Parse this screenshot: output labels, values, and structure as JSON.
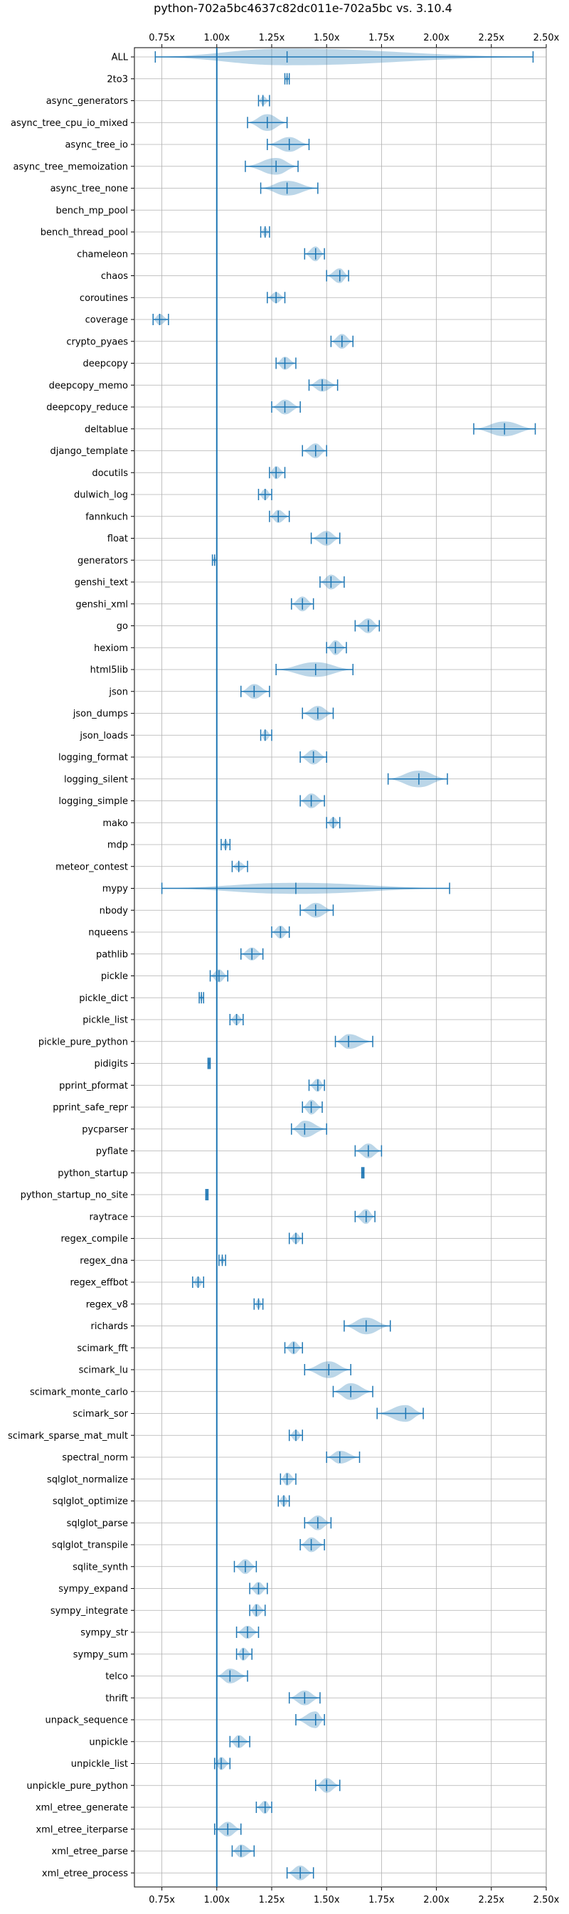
{
  "chart_data": {
    "type": "violin",
    "title": "python-702a5bc4637c82dc011e-702a5bc vs. 3.10.4",
    "xlabel": "",
    "ylabel": "",
    "xlim": [
      0.625,
      2.5
    ],
    "x_ticks": [
      0.75,
      1.0,
      1.25,
      1.5,
      1.75,
      2.0,
      2.25,
      2.5
    ],
    "x_tick_labels": [
      "0.75x",
      "1.00x",
      "1.25x",
      "1.50x",
      "1.75x",
      "2.00x",
      "2.25x",
      "2.50x"
    ],
    "reference_line": 1.0,
    "grid": true,
    "color": "#1f77b4",
    "fill_color": "#1f77b4",
    "categories": [
      "ALL",
      "2to3",
      "async_generators",
      "async_tree_cpu_io_mixed",
      "async_tree_io",
      "async_tree_memoization",
      "async_tree_none",
      "bench_mp_pool",
      "bench_thread_pool",
      "chameleon",
      "chaos",
      "coroutines",
      "coverage",
      "crypto_pyaes",
      "deepcopy",
      "deepcopy_memo",
      "deepcopy_reduce",
      "deltablue",
      "django_template",
      "docutils",
      "dulwich_log",
      "fannkuch",
      "float",
      "generators",
      "genshi_text",
      "genshi_xml",
      "go",
      "hexiom",
      "html5lib",
      "json",
      "json_dumps",
      "json_loads",
      "logging_format",
      "logging_silent",
      "logging_simple",
      "mako",
      "mdp",
      "meteor_contest",
      "mypy",
      "nbody",
      "nqueens",
      "pathlib",
      "pickle",
      "pickle_dict",
      "pickle_list",
      "pickle_pure_python",
      "pidigits",
      "pprint_pformat",
      "pprint_safe_repr",
      "pycparser",
      "pyflate",
      "python_startup",
      "python_startup_no_site",
      "raytrace",
      "regex_compile",
      "regex_dna",
      "regex_effbot",
      "regex_v8",
      "richards",
      "scimark_fft",
      "scimark_lu",
      "scimark_monte_carlo",
      "scimark_sor",
      "scimark_sparse_mat_mult",
      "spectral_norm",
      "sqlglot_normalize",
      "sqlglot_optimize",
      "sqlglot_parse",
      "sqlglot_transpile",
      "sqlite_synth",
      "sympy_expand",
      "sympy_integrate",
      "sympy_str",
      "sympy_sum",
      "telco",
      "thrift",
      "unpack_sequence",
      "unpickle",
      "unpickle_list",
      "unpickle_pure_python",
      "xml_etree_generate",
      "xml_etree_iterparse",
      "xml_etree_parse",
      "xml_etree_process"
    ],
    "series": [
      {
        "min": 0.72,
        "max": 2.44,
        "median": 1.32,
        "width": 0.9
      },
      {
        "min": 1.31,
        "max": 1.33,
        "median": 1.32,
        "width": 0.4
      },
      {
        "min": 1.19,
        "max": 1.24,
        "median": 1.21,
        "width": 0.5
      },
      {
        "min": 1.14,
        "max": 1.32,
        "median": 1.23,
        "width": 0.9
      },
      {
        "min": 1.23,
        "max": 1.42,
        "median": 1.33,
        "width": 0.8
      },
      {
        "min": 1.13,
        "max": 1.37,
        "median": 1.27,
        "width": 0.9
      },
      {
        "min": 1.2,
        "max": 1.46,
        "median": 1.32,
        "width": 0.8
      },
      {
        "min": null,
        "max": null,
        "median": null,
        "width": 0
      },
      {
        "min": 1.2,
        "max": 1.24,
        "median": 1.22,
        "width": 0.5
      },
      {
        "min": 1.4,
        "max": 1.49,
        "median": 1.45,
        "width": 0.8
      },
      {
        "min": 1.5,
        "max": 1.6,
        "median": 1.56,
        "width": 0.8
      },
      {
        "min": 1.23,
        "max": 1.31,
        "median": 1.27,
        "width": 0.6
      },
      {
        "min": 0.71,
        "max": 0.78,
        "median": 0.74,
        "width": 0.6
      },
      {
        "min": 1.52,
        "max": 1.62,
        "median": 1.57,
        "width": 0.8
      },
      {
        "min": 1.27,
        "max": 1.36,
        "median": 1.31,
        "width": 0.7
      },
      {
        "min": 1.42,
        "max": 1.55,
        "median": 1.48,
        "width": 0.7
      },
      {
        "min": 1.25,
        "max": 1.38,
        "median": 1.31,
        "width": 0.8
      },
      {
        "min": 2.17,
        "max": 2.45,
        "median": 2.31,
        "width": 0.8
      },
      {
        "min": 1.39,
        "max": 1.5,
        "median": 1.45,
        "width": 0.8
      },
      {
        "min": 1.24,
        "max": 1.31,
        "median": 1.27,
        "width": 0.7
      },
      {
        "min": 1.19,
        "max": 1.25,
        "median": 1.22,
        "width": 0.6
      },
      {
        "min": 1.24,
        "max": 1.33,
        "median": 1.28,
        "width": 0.7
      },
      {
        "min": 1.43,
        "max": 1.56,
        "median": 1.5,
        "width": 0.8
      },
      {
        "min": 0.98,
        "max": 1.0,
        "median": 0.99,
        "width": 0.4
      },
      {
        "min": 1.47,
        "max": 1.58,
        "median": 1.52,
        "width": 0.8
      },
      {
        "min": 1.34,
        "max": 1.44,
        "median": 1.39,
        "width": 0.8
      },
      {
        "min": 1.63,
        "max": 1.74,
        "median": 1.69,
        "width": 0.8
      },
      {
        "min": 1.5,
        "max": 1.59,
        "median": 1.54,
        "width": 0.8
      },
      {
        "min": 1.27,
        "max": 1.62,
        "median": 1.45,
        "width": 0.8
      },
      {
        "min": 1.11,
        "max": 1.24,
        "median": 1.17,
        "width": 0.8
      },
      {
        "min": 1.39,
        "max": 1.53,
        "median": 1.46,
        "width": 0.8
      },
      {
        "min": 1.2,
        "max": 1.25,
        "median": 1.22,
        "width": 0.6
      },
      {
        "min": 1.38,
        "max": 1.5,
        "median": 1.44,
        "width": 0.8
      },
      {
        "min": 1.78,
        "max": 2.05,
        "median": 1.92,
        "width": 0.9
      },
      {
        "min": 1.38,
        "max": 1.49,
        "median": 1.43,
        "width": 0.8
      },
      {
        "min": 1.5,
        "max": 1.56,
        "median": 1.53,
        "width": 0.6
      },
      {
        "min": 1.02,
        "max": 1.06,
        "median": 1.04,
        "width": 0.5
      },
      {
        "min": 1.07,
        "max": 1.14,
        "median": 1.1,
        "width": 0.5
      },
      {
        "min": 0.75,
        "max": 2.06,
        "median": 1.36,
        "width": 0.6
      },
      {
        "min": 1.38,
        "max": 1.53,
        "median": 1.45,
        "width": 0.8
      },
      {
        "min": 1.25,
        "max": 1.33,
        "median": 1.29,
        "width": 0.7
      },
      {
        "min": 1.11,
        "max": 1.21,
        "median": 1.16,
        "width": 0.7
      },
      {
        "min": 0.97,
        "max": 1.05,
        "median": 1.01,
        "width": 0.7
      },
      {
        "min": 0.92,
        "max": 0.94,
        "median": 0.93,
        "width": 0.4
      },
      {
        "min": 1.06,
        "max": 1.12,
        "median": 1.09,
        "width": 0.6
      },
      {
        "min": 1.54,
        "max": 1.71,
        "median": 1.6,
        "width": 0.8
      },
      {
        "min": 0.96,
        "max": 0.97,
        "median": 0.965,
        "width": 0.3
      },
      {
        "min": 1.42,
        "max": 1.49,
        "median": 1.46,
        "width": 0.7
      },
      {
        "min": 1.39,
        "max": 1.48,
        "median": 1.43,
        "width": 0.8
      },
      {
        "min": 1.34,
        "max": 1.5,
        "median": 1.4,
        "width": 0.9
      },
      {
        "min": 1.63,
        "max": 1.75,
        "median": 1.69,
        "width": 0.8
      },
      {
        "min": 1.66,
        "max": 1.67,
        "median": 1.665,
        "width": 0.3
      },
      {
        "min": 0.95,
        "max": 0.96,
        "median": 0.955,
        "width": 0.3
      },
      {
        "min": 1.63,
        "max": 1.72,
        "median": 1.68,
        "width": 0.8
      },
      {
        "min": 1.33,
        "max": 1.39,
        "median": 1.36,
        "width": 0.6
      },
      {
        "min": 1.01,
        "max": 1.04,
        "median": 1.025,
        "width": 0.4
      },
      {
        "min": 0.89,
        "max": 0.94,
        "median": 0.915,
        "width": 0.6
      },
      {
        "min": 1.17,
        "max": 1.21,
        "median": 1.19,
        "width": 0.5
      },
      {
        "min": 1.58,
        "max": 1.79,
        "median": 1.68,
        "width": 0.9
      },
      {
        "min": 1.31,
        "max": 1.39,
        "median": 1.35,
        "width": 0.7
      },
      {
        "min": 1.4,
        "max": 1.61,
        "median": 1.51,
        "width": 0.9
      },
      {
        "min": 1.53,
        "max": 1.71,
        "median": 1.61,
        "width": 0.9
      },
      {
        "min": 1.73,
        "max": 1.94,
        "median": 1.86,
        "width": 0.9
      },
      {
        "min": 1.33,
        "max": 1.39,
        "median": 1.36,
        "width": 0.6
      },
      {
        "min": 1.5,
        "max": 1.65,
        "median": 1.56,
        "width": 0.7
      },
      {
        "min": 1.29,
        "max": 1.36,
        "median": 1.32,
        "width": 0.7
      },
      {
        "min": 1.28,
        "max": 1.33,
        "median": 1.305,
        "width": 0.6
      },
      {
        "min": 1.4,
        "max": 1.52,
        "median": 1.46,
        "width": 0.8
      },
      {
        "min": 1.38,
        "max": 1.49,
        "median": 1.43,
        "width": 0.8
      },
      {
        "min": 1.08,
        "max": 1.18,
        "median": 1.13,
        "width": 0.8
      },
      {
        "min": 1.15,
        "max": 1.23,
        "median": 1.19,
        "width": 0.7
      },
      {
        "min": 1.15,
        "max": 1.22,
        "median": 1.18,
        "width": 0.7
      },
      {
        "min": 1.09,
        "max": 1.19,
        "median": 1.14,
        "width": 0.7
      },
      {
        "min": 1.09,
        "max": 1.16,
        "median": 1.12,
        "width": 0.7
      },
      {
        "min": 1.0,
        "max": 1.14,
        "median": 1.06,
        "width": 0.8
      },
      {
        "min": 1.33,
        "max": 1.47,
        "median": 1.4,
        "width": 0.8
      },
      {
        "min": 1.36,
        "max": 1.49,
        "median": 1.45,
        "width": 0.9
      },
      {
        "min": 1.06,
        "max": 1.15,
        "median": 1.1,
        "width": 0.7
      },
      {
        "min": 0.99,
        "max": 1.06,
        "median": 1.02,
        "width": 0.7
      },
      {
        "min": 1.45,
        "max": 1.56,
        "median": 1.5,
        "width": 0.8
      },
      {
        "min": 1.18,
        "max": 1.25,
        "median": 1.22,
        "width": 0.7
      },
      {
        "min": 0.99,
        "max": 1.11,
        "median": 1.05,
        "width": 0.8
      },
      {
        "min": 1.07,
        "max": 1.17,
        "median": 1.11,
        "width": 0.7
      },
      {
        "min": 1.32,
        "max": 1.44,
        "median": 1.38,
        "width": 0.8
      }
    ]
  }
}
